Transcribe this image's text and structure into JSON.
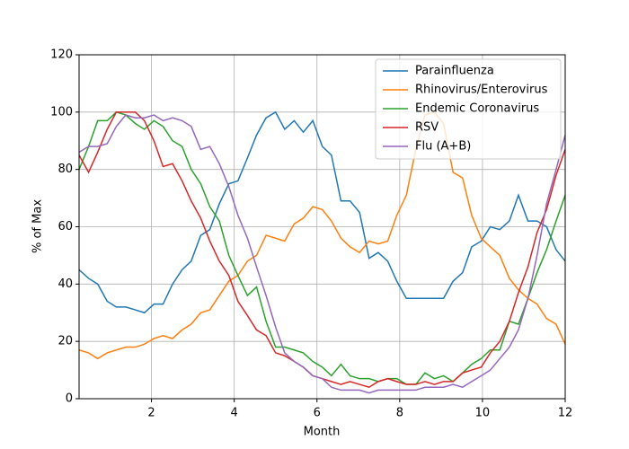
{
  "chart_data": {
    "type": "line",
    "xlabel": "Month",
    "ylabel": "% of Max",
    "x": [
      0.25,
      0.48,
      0.7,
      0.93,
      1.15,
      1.38,
      1.61,
      1.83,
      2.06,
      2.28,
      2.51,
      2.74,
      2.96,
      3.19,
      3.41,
      3.64,
      3.87,
      4.09,
      4.32,
      4.54,
      4.77,
      5.0,
      5.22,
      5.45,
      5.67,
      5.9,
      6.13,
      6.35,
      6.58,
      6.8,
      7.03,
      7.26,
      7.48,
      7.71,
      7.93,
      8.16,
      8.39,
      8.61,
      8.84,
      9.06,
      9.29,
      9.52,
      9.74,
      9.97,
      10.19,
      10.42,
      10.65,
      10.87,
      11.1,
      11.32,
      11.55,
      11.78,
      12.0
    ],
    "series": [
      {
        "name": "Parainfluenza",
        "color": "#1f77b4",
        "values": [
          45,
          42,
          40,
          34,
          32,
          32,
          31,
          30,
          33,
          33,
          40,
          45,
          48,
          57,
          59,
          68,
          75,
          76,
          84,
          92,
          98,
          100,
          94,
          97,
          93,
          97,
          88,
          85,
          69,
          69,
          65,
          49,
          51,
          48,
          41,
          35,
          35,
          35,
          35,
          35,
          41,
          44,
          53,
          55,
          60,
          59,
          62,
          71,
          62,
          62,
          60,
          52,
          48
        ]
      },
      {
        "name": "Rhinovirus/Enterovirus",
        "color": "#ff7f0e",
        "values": [
          17,
          16,
          14,
          16,
          17,
          18,
          18,
          19,
          21,
          22,
          21,
          24,
          26,
          30,
          31,
          36,
          41,
          43,
          48,
          50,
          57,
          56,
          55,
          61,
          63,
          67,
          66,
          62,
          56,
          53,
          51,
          55,
          54,
          55,
          64,
          71,
          87,
          99,
          100,
          96,
          79,
          77,
          64,
          56,
          53,
          50,
          42,
          38,
          35,
          33,
          28,
          26,
          19
        ]
      },
      {
        "name": "Endemic Coronavirus",
        "color": "#2ca02c",
        "values": [
          80,
          88,
          97,
          97,
          100,
          99,
          96,
          94,
          97,
          95,
          90,
          88,
          80,
          75,
          67,
          62,
          50,
          43,
          36,
          39,
          27,
          18,
          18,
          17,
          16,
          13,
          11,
          8,
          12,
          8,
          7,
          7,
          6,
          7,
          7,
          5,
          5,
          9,
          7,
          8,
          6,
          9,
          12,
          14,
          17,
          17,
          27,
          26,
          35,
          44,
          52,
          62,
          71
        ]
      },
      {
        "name": "RSV",
        "color": "#d62728",
        "values": [
          85,
          79,
          86,
          94,
          100,
          100,
          100,
          97,
          90,
          81,
          82,
          76,
          69,
          63,
          55,
          48,
          43,
          34,
          29,
          24,
          22,
          16,
          15,
          13,
          11,
          8,
          7,
          6,
          5,
          6,
          5,
          4,
          6,
          7,
          6,
          5,
          5,
          6,
          5,
          6,
          6,
          9,
          10,
          11,
          16,
          20,
          27,
          37,
          46,
          58,
          66,
          78,
          87
        ]
      },
      {
        "name": "Flu (A+B)",
        "color": "#9467bd",
        "values": [
          86,
          88,
          88,
          89,
          95,
          99,
          98,
          98,
          99,
          97,
          98,
          97,
          95,
          87,
          88,
          82,
          74,
          64,
          56,
          46,
          36,
          25,
          16,
          13,
          11,
          8,
          7,
          4,
          3,
          3,
          3,
          2,
          3,
          3,
          3,
          3,
          3,
          4,
          4,
          4,
          5,
          4,
          6,
          8,
          10,
          14,
          18,
          24,
          35,
          50,
          68,
          80,
          92
        ]
      }
    ],
    "xlim": [
      0.25,
      12
    ],
    "xticks": [
      2,
      4,
      6,
      8,
      10,
      12
    ],
    "ylim": [
      0,
      120
    ],
    "yticks": [
      0,
      20,
      40,
      60,
      80,
      100,
      120
    ],
    "grid": true,
    "legend": "upper right"
  }
}
